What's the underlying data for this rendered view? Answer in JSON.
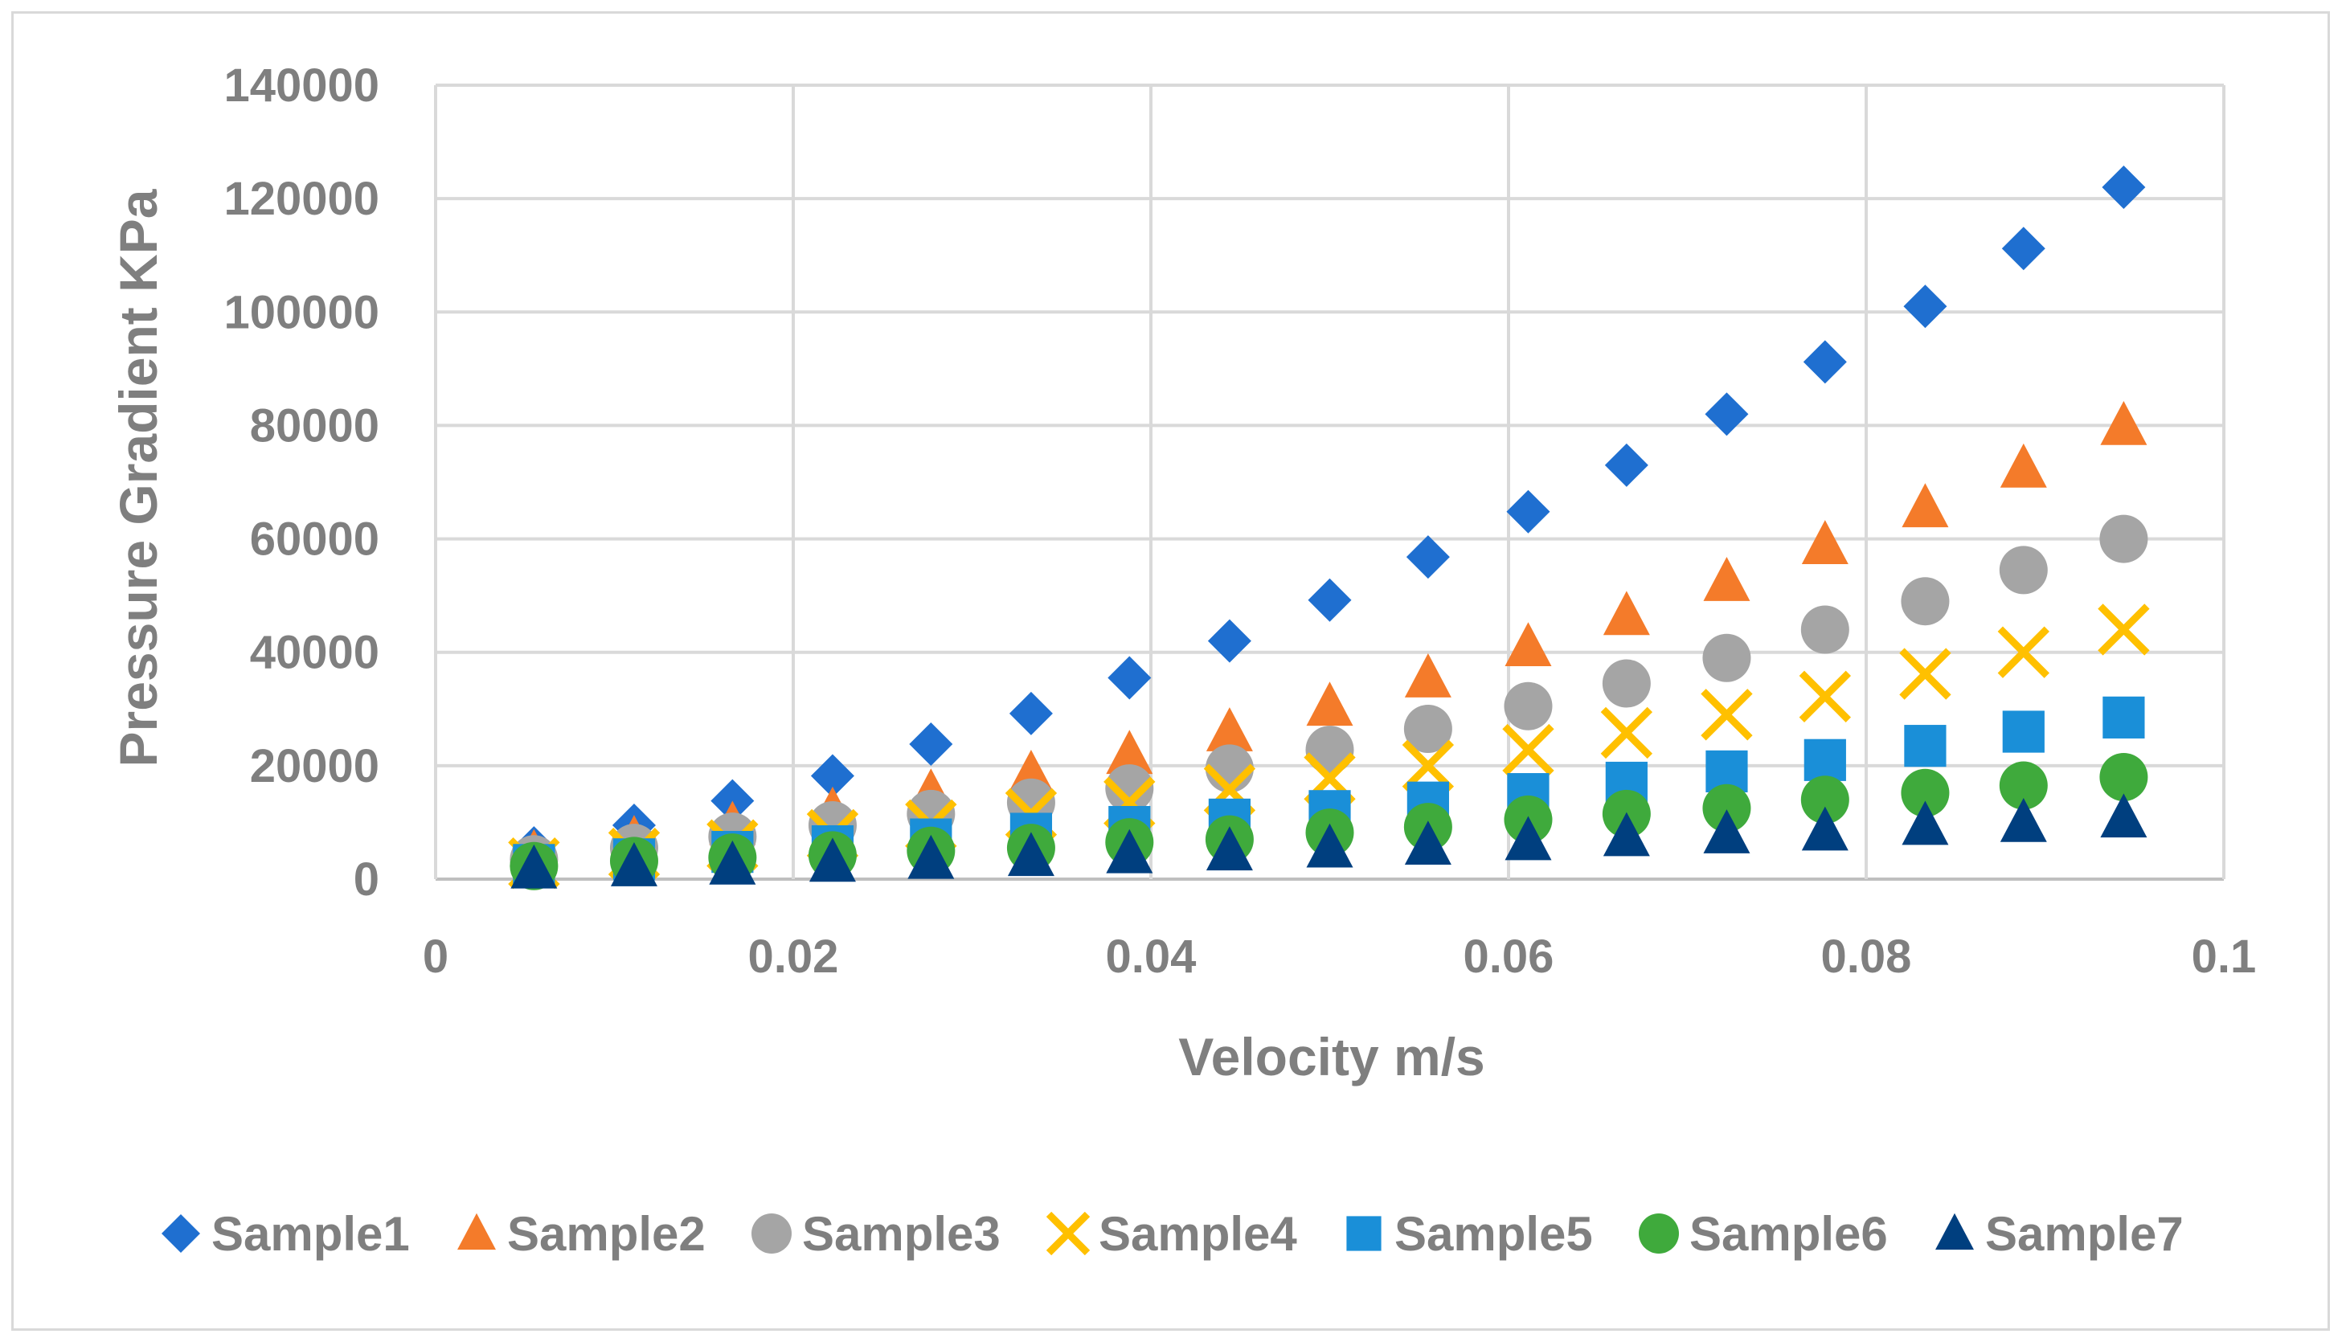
{
  "chart_data": {
    "type": "scatter",
    "title": "",
    "xlabel": "Velocity m/s",
    "ylabel": "Pressure Gradient KPa",
    "xlim": [
      0,
      0.1
    ],
    "ylim": [
      0,
      140000
    ],
    "x_ticks": [
      0,
      0.02,
      0.04,
      0.06,
      0.08,
      0.1
    ],
    "x_tick_labels": [
      "0",
      "0.02",
      "0.04",
      "0.06",
      "0.08",
      "0.1"
    ],
    "y_ticks": [
      0,
      20000,
      40000,
      60000,
      80000,
      100000,
      120000,
      140000
    ],
    "y_tick_labels": [
      "0",
      "20000",
      "40000",
      "60000",
      "80000",
      "100000",
      "120000",
      "140000"
    ],
    "grid": true,
    "legend_position": "bottom",
    "x": [
      0.0055,
      0.0111,
      0.0166,
      0.0222,
      0.0277,
      0.0333,
      0.0388,
      0.0444,
      0.05,
      0.0555,
      0.0611,
      0.0666,
      0.0722,
      0.0777,
      0.0833,
      0.0888,
      0.0944
    ],
    "series": [
      {
        "name": "Sample1",
        "marker": "diamond",
        "color": "#1f6fd0",
        "values": [
          5500,
          9500,
          13800,
          18200,
          23800,
          29200,
          35500,
          42000,
          49200,
          56800,
          64800,
          73000,
          82000,
          91200,
          101000,
          111200,
          122000
        ]
      },
      {
        "name": "Sample2",
        "marker": "triangle",
        "color": "#f47b2a",
        "values": [
          4500,
          7000,
          9500,
          12000,
          15200,
          18500,
          22000,
          26000,
          30500,
          35500,
          41000,
          46500,
          52500,
          59000,
          65500,
          72500,
          80000
        ]
      },
      {
        "name": "Sample3",
        "marker": "circle",
        "color": "#a5a5a5",
        "values": [
          3500,
          5500,
          7500,
          9500,
          11500,
          13500,
          16000,
          19500,
          22800,
          26500,
          30500,
          34500,
          39000,
          44000,
          49000,
          54500,
          60000
        ]
      },
      {
        "name": "Sample4",
        "marker": "x",
        "color": "#ffc000",
        "values": [
          2800,
          4500,
          6000,
          7800,
          9500,
          11500,
          13500,
          15800,
          17800,
          20000,
          22800,
          25800,
          29000,
          32200,
          36200,
          40000,
          44000
        ]
      },
      {
        "name": "Sample5",
        "marker": "square",
        "color": "#1a8fd8",
        "values": [
          2500,
          3500,
          4800,
          5800,
          7000,
          8000,
          9200,
          10500,
          12000,
          13500,
          15000,
          17000,
          19000,
          21000,
          23500,
          26000,
          28500
        ]
      },
      {
        "name": "Sample6",
        "marker": "circle",
        "color": "#3faa3c",
        "values": [
          2300,
          3200,
          3800,
          4200,
          5000,
          5500,
          6500,
          7000,
          8200,
          9200,
          10500,
          11500,
          12500,
          14000,
          15200,
          16500,
          18000
        ]
      },
      {
        "name": "Sample7",
        "marker": "triangle",
        "color": "#003f7f",
        "values": [
          1800,
          2200,
          2500,
          3000,
          3500,
          4000,
          4500,
          5000,
          5500,
          6000,
          6800,
          7500,
          8000,
          8500,
          9500,
          10000,
          10800
        ]
      }
    ]
  }
}
